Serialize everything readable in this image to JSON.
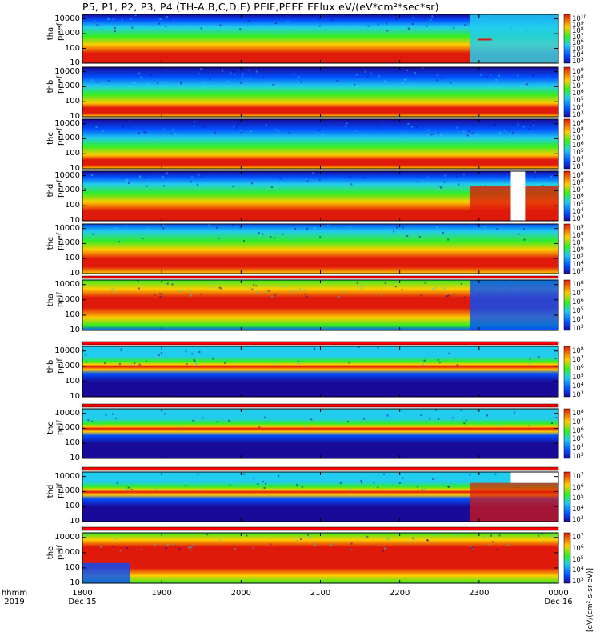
{
  "title": "P5, P1, P2, P3, P4 (TH-A,B,C,D,E) PEIF,PEEF EFlux eV/(eV*cm²*sec*sr)",
  "x_axis": {
    "row_labels": [
      "hhmm",
      "2019"
    ],
    "ticks": [
      "1800",
      "1900",
      "2000",
      "2100",
      "2200",
      "2300",
      "0000"
    ],
    "dates": [
      "Dec 15",
      "Dec 16"
    ]
  },
  "colorbar_unit_label": "[eV/(cm²-s-sr-eV)]",
  "colors": {
    "min": "#1a0a99",
    "low": "#0050ff",
    "mid": "#22ccee",
    "mid2": "#33ee22",
    "high": "#ffcc00",
    "max": "#e01a0a",
    "flag": "#ff0000"
  },
  "chart_data": [
    {
      "type": "heatmap",
      "ylabel": [
        "tha",
        "peef"
      ],
      "y_ticks": [
        "10000",
        "1000",
        "100",
        "10"
      ],
      "cbar_ticks": [
        [
          "10",
          "10"
        ],
        [
          "10",
          "9"
        ],
        [
          "10",
          "8"
        ],
        [
          "10",
          "7"
        ],
        [
          "10",
          "6"
        ],
        [
          "10",
          "5"
        ],
        [
          "10",
          "4"
        ],
        [
          "10",
          "3"
        ]
      ],
      "x": [
        "1800",
        "1900",
        "2000",
        "2100",
        "2200",
        "2300",
        "0000"
      ]
    },
    {
      "type": "heatmap",
      "ylabel": [
        "thb",
        "peef"
      ],
      "y_ticks": [
        "10000",
        "1000",
        "100",
        "10"
      ],
      "cbar_ticks": [
        [
          "10",
          "9"
        ],
        [
          "10",
          "8"
        ],
        [
          "10",
          "7"
        ],
        [
          "10",
          "6"
        ],
        [
          "10",
          "5"
        ],
        [
          "10",
          "4"
        ],
        [
          "10",
          "3"
        ]
      ],
      "x": [
        "1800",
        "1900",
        "2000",
        "2100",
        "2200",
        "2300",
        "0000"
      ]
    },
    {
      "type": "heatmap",
      "ylabel": [
        "thc",
        "peef"
      ],
      "y_ticks": [
        "10000",
        "1000",
        "100",
        "10"
      ],
      "cbar_ticks": [
        [
          "10",
          "9"
        ],
        [
          "10",
          "8"
        ],
        [
          "10",
          "7"
        ],
        [
          "10",
          "6"
        ],
        [
          "10",
          "5"
        ],
        [
          "10",
          "4"
        ],
        [
          "10",
          "3"
        ]
      ],
      "x": [
        "1800",
        "1900",
        "2000",
        "2100",
        "2200",
        "2300",
        "0000"
      ]
    },
    {
      "type": "heatmap",
      "ylabel": [
        "thd",
        "peef"
      ],
      "y_ticks": [
        "10000",
        "1000",
        "100",
        "10"
      ],
      "cbar_ticks": [
        [
          "10",
          "9"
        ],
        [
          "10",
          "8"
        ],
        [
          "10",
          "7"
        ],
        [
          "10",
          "6"
        ],
        [
          "10",
          "5"
        ],
        [
          "10",
          "4"
        ],
        [
          "10",
          "3"
        ]
      ],
      "x": [
        "1800",
        "1900",
        "2000",
        "2100",
        "2200",
        "2300",
        "0000"
      ]
    },
    {
      "type": "heatmap",
      "ylabel": [
        "the",
        "peef"
      ],
      "y_ticks": [
        "10000",
        "1000",
        "100",
        "10"
      ],
      "cbar_ticks": [
        [
          "10",
          "9"
        ],
        [
          "10",
          "8"
        ],
        [
          "10",
          "7"
        ],
        [
          "10",
          "6"
        ],
        [
          "10",
          "5"
        ],
        [
          "10",
          "4"
        ],
        [
          "10",
          "3"
        ]
      ],
      "x": [
        "1800",
        "1900",
        "2000",
        "2100",
        "2200",
        "2300",
        "0000"
      ]
    },
    {
      "type": "heatmap",
      "ylabel": [
        "tha",
        "peif"
      ],
      "y_ticks": [
        "10000",
        "1000",
        "100",
        "10"
      ],
      "cbar_ticks": [
        [
          "10",
          "8"
        ],
        [
          "10",
          "7"
        ],
        [
          "10",
          "6"
        ],
        [
          "10",
          "5"
        ],
        [
          "10",
          "4"
        ],
        [
          "10",
          "3"
        ]
      ],
      "x": [
        "1800",
        "1900",
        "2000",
        "2100",
        "2200",
        "2300",
        "0000"
      ]
    },
    {
      "type": "heatmap",
      "ylabel": [
        "thb",
        "peif"
      ],
      "y_ticks": [
        "10000",
        "1000",
        "100",
        "10"
      ],
      "cbar_ticks": [
        [
          "10",
          "8"
        ],
        [
          "10",
          "7"
        ],
        [
          "10",
          "6"
        ],
        [
          "10",
          "5"
        ],
        [
          "10",
          "4"
        ],
        [
          "10",
          "3"
        ]
      ],
      "x": [
        "1800",
        "1900",
        "2000",
        "2100",
        "2200",
        "2300",
        "0000"
      ]
    },
    {
      "type": "heatmap",
      "ylabel": [
        "thc",
        "peif"
      ],
      "y_ticks": [
        "10000",
        "1000",
        "100",
        "10"
      ],
      "cbar_ticks": [
        [
          "10",
          "8"
        ],
        [
          "10",
          "7"
        ],
        [
          "10",
          "6"
        ],
        [
          "10",
          "5"
        ],
        [
          "10",
          "4"
        ],
        [
          "10",
          "3"
        ]
      ],
      "x": [
        "1800",
        "1900",
        "2000",
        "2100",
        "2200",
        "2300",
        "0000"
      ]
    },
    {
      "type": "heatmap",
      "ylabel": [
        "thd",
        "peif"
      ],
      "y_ticks": [
        "10000",
        "1000",
        "100",
        "10"
      ],
      "cbar_ticks": [
        [
          "10",
          "7"
        ],
        [
          "10",
          "6"
        ],
        [
          "10",
          "5"
        ],
        [
          "10",
          "4"
        ],
        [
          "10",
          "3"
        ]
      ],
      "x": [
        "1800",
        "1900",
        "2000",
        "2100",
        "2200",
        "2300",
        "0000"
      ]
    },
    {
      "type": "heatmap",
      "ylabel": [
        "the",
        "peif"
      ],
      "y_ticks": [
        "10000",
        "1000",
        "100",
        "10"
      ],
      "cbar_ticks": [
        [
          "10",
          "7"
        ],
        [
          "10",
          "6"
        ],
        [
          "10",
          "5"
        ],
        [
          "10",
          "4"
        ],
        [
          "10",
          "3"
        ]
      ],
      "x": [
        "1800",
        "1900",
        "2000",
        "2100",
        "2200",
        "2300",
        "0000"
      ]
    }
  ]
}
